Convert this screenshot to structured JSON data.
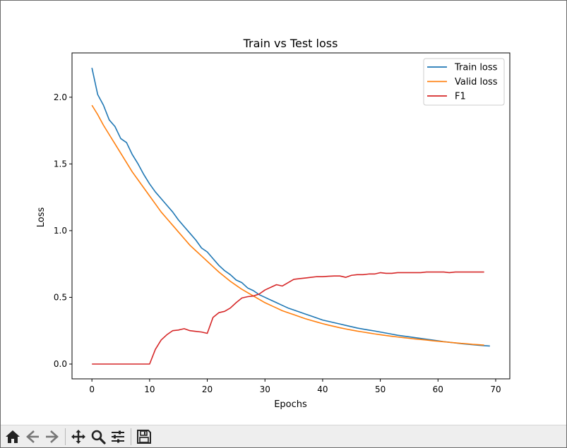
{
  "toolbar": {
    "buttons": [
      {
        "name": "home-icon"
      },
      {
        "name": "back-icon"
      },
      {
        "name": "forward-icon"
      },
      {
        "name": "pan-icon"
      },
      {
        "name": "zoom-icon"
      },
      {
        "name": "configure-subplots-icon"
      },
      {
        "name": "save-icon"
      }
    ],
    "icon_color": "#222222"
  },
  "chart_data": {
    "type": "line",
    "title": "Train vs Test loss",
    "xlabel": "Epochs",
    "ylabel": "Loss",
    "xlim": [
      -3.45,
      72.45
    ],
    "ylim": [
      -0.111,
      2.332
    ],
    "xticks": [
      0,
      10,
      20,
      30,
      40,
      50,
      60,
      70
    ],
    "xtick_labels": [
      "0",
      "10",
      "20",
      "30",
      "40",
      "50",
      "60",
      "70"
    ],
    "yticks": [
      0.0,
      0.5,
      1.0,
      1.5,
      2.0
    ],
    "ytick_labels": [
      "0.0",
      "0.5",
      "1.0",
      "1.5",
      "2.0"
    ],
    "grid": false,
    "legend_position": "top-right",
    "series": [
      {
        "name": "Train loss",
        "color": "#1f77b4",
        "x": [
          0,
          1,
          2,
          3,
          4,
          5,
          6,
          7,
          8,
          9,
          10,
          11,
          12,
          13,
          14,
          15,
          16,
          17,
          18,
          19,
          20,
          21,
          22,
          23,
          24,
          25,
          26,
          27,
          28,
          29,
          30,
          31,
          32,
          33,
          34,
          35,
          36,
          37,
          38,
          39,
          40,
          41,
          42,
          43,
          44,
          45,
          46,
          47,
          48,
          49,
          50,
          51,
          52,
          53,
          54,
          55,
          56,
          57,
          58,
          59,
          60,
          61,
          62,
          63,
          64,
          65,
          66,
          67,
          68,
          69
        ],
        "y": [
          2.22,
          2.02,
          1.94,
          1.83,
          1.78,
          1.69,
          1.66,
          1.57,
          1.5,
          1.42,
          1.35,
          1.29,
          1.24,
          1.19,
          1.14,
          1.08,
          1.03,
          0.98,
          0.93,
          0.87,
          0.84,
          0.79,
          0.74,
          0.7,
          0.67,
          0.63,
          0.61,
          0.57,
          0.55,
          0.52,
          0.5,
          0.48,
          0.46,
          0.44,
          0.42,
          0.405,
          0.39,
          0.375,
          0.36,
          0.345,
          0.33,
          0.32,
          0.31,
          0.3,
          0.29,
          0.28,
          0.27,
          0.262,
          0.255,
          0.248,
          0.24,
          0.232,
          0.224,
          0.216,
          0.21,
          0.204,
          0.198,
          0.192,
          0.186,
          0.18,
          0.174,
          0.168,
          0.163,
          0.158,
          0.153,
          0.149,
          0.145,
          0.141,
          0.138,
          0.135
        ]
      },
      {
        "name": "Valid loss",
        "color": "#ff7f0e",
        "x": [
          0,
          1,
          2,
          3,
          4,
          5,
          6,
          7,
          8,
          9,
          10,
          11,
          12,
          13,
          14,
          15,
          16,
          17,
          18,
          19,
          20,
          21,
          22,
          23,
          24,
          25,
          26,
          27,
          28,
          29,
          30,
          31,
          32,
          33,
          34,
          35,
          36,
          37,
          38,
          39,
          40,
          41,
          42,
          43,
          44,
          45,
          46,
          47,
          48,
          49,
          50,
          51,
          52,
          53,
          54,
          55,
          56,
          57,
          58,
          59,
          60,
          61,
          62,
          63,
          64,
          65,
          66,
          67,
          68
        ],
        "y": [
          1.94,
          1.87,
          1.79,
          1.72,
          1.65,
          1.58,
          1.51,
          1.44,
          1.38,
          1.32,
          1.26,
          1.2,
          1.14,
          1.09,
          1.04,
          0.99,
          0.94,
          0.89,
          0.85,
          0.81,
          0.77,
          0.73,
          0.69,
          0.655,
          0.62,
          0.59,
          0.56,
          0.535,
          0.51,
          0.485,
          0.46,
          0.44,
          0.42,
          0.4,
          0.385,
          0.37,
          0.355,
          0.34,
          0.327,
          0.315,
          0.303,
          0.292,
          0.282,
          0.272,
          0.263,
          0.255,
          0.247,
          0.24,
          0.233,
          0.226,
          0.22,
          0.214,
          0.208,
          0.203,
          0.198,
          0.193,
          0.188,
          0.184,
          0.18,
          0.175,
          0.171,
          0.167,
          0.163,
          0.159,
          0.155,
          0.152,
          0.148,
          0.145,
          0.142
        ]
      },
      {
        "name": "F1",
        "color": "#d62728",
        "x": [
          0,
          1,
          2,
          3,
          4,
          5,
          6,
          7,
          8,
          9,
          10,
          11,
          12,
          13,
          14,
          15,
          16,
          17,
          18,
          19,
          20,
          21,
          22,
          23,
          24,
          25,
          26,
          27,
          28,
          29,
          30,
          31,
          32,
          33,
          34,
          35,
          36,
          37,
          38,
          39,
          40,
          41,
          42,
          43,
          44,
          45,
          46,
          47,
          48,
          49,
          50,
          51,
          52,
          53,
          54,
          55,
          56,
          57,
          58,
          59,
          60,
          61,
          62,
          63,
          64,
          65,
          66,
          67,
          68
        ],
        "y": [
          0,
          0,
          0,
          0,
          0,
          0,
          0,
          0,
          0,
          0,
          0,
          0.11,
          0.18,
          0.22,
          0.25,
          0.255,
          0.265,
          0.25,
          0.245,
          0.24,
          0.23,
          0.35,
          0.385,
          0.395,
          0.42,
          0.46,
          0.495,
          0.505,
          0.51,
          0.525,
          0.555,
          0.575,
          0.595,
          0.585,
          0.61,
          0.635,
          0.64,
          0.645,
          0.65,
          0.655,
          0.655,
          0.658,
          0.66,
          0.66,
          0.65,
          0.665,
          0.67,
          0.67,
          0.675,
          0.675,
          0.685,
          0.68,
          0.68,
          0.685,
          0.685,
          0.685,
          0.685,
          0.685,
          0.69,
          0.69,
          0.69,
          0.69,
          0.685,
          0.69,
          0.69,
          0.69,
          0.69,
          0.69,
          0.69
        ]
      }
    ]
  }
}
